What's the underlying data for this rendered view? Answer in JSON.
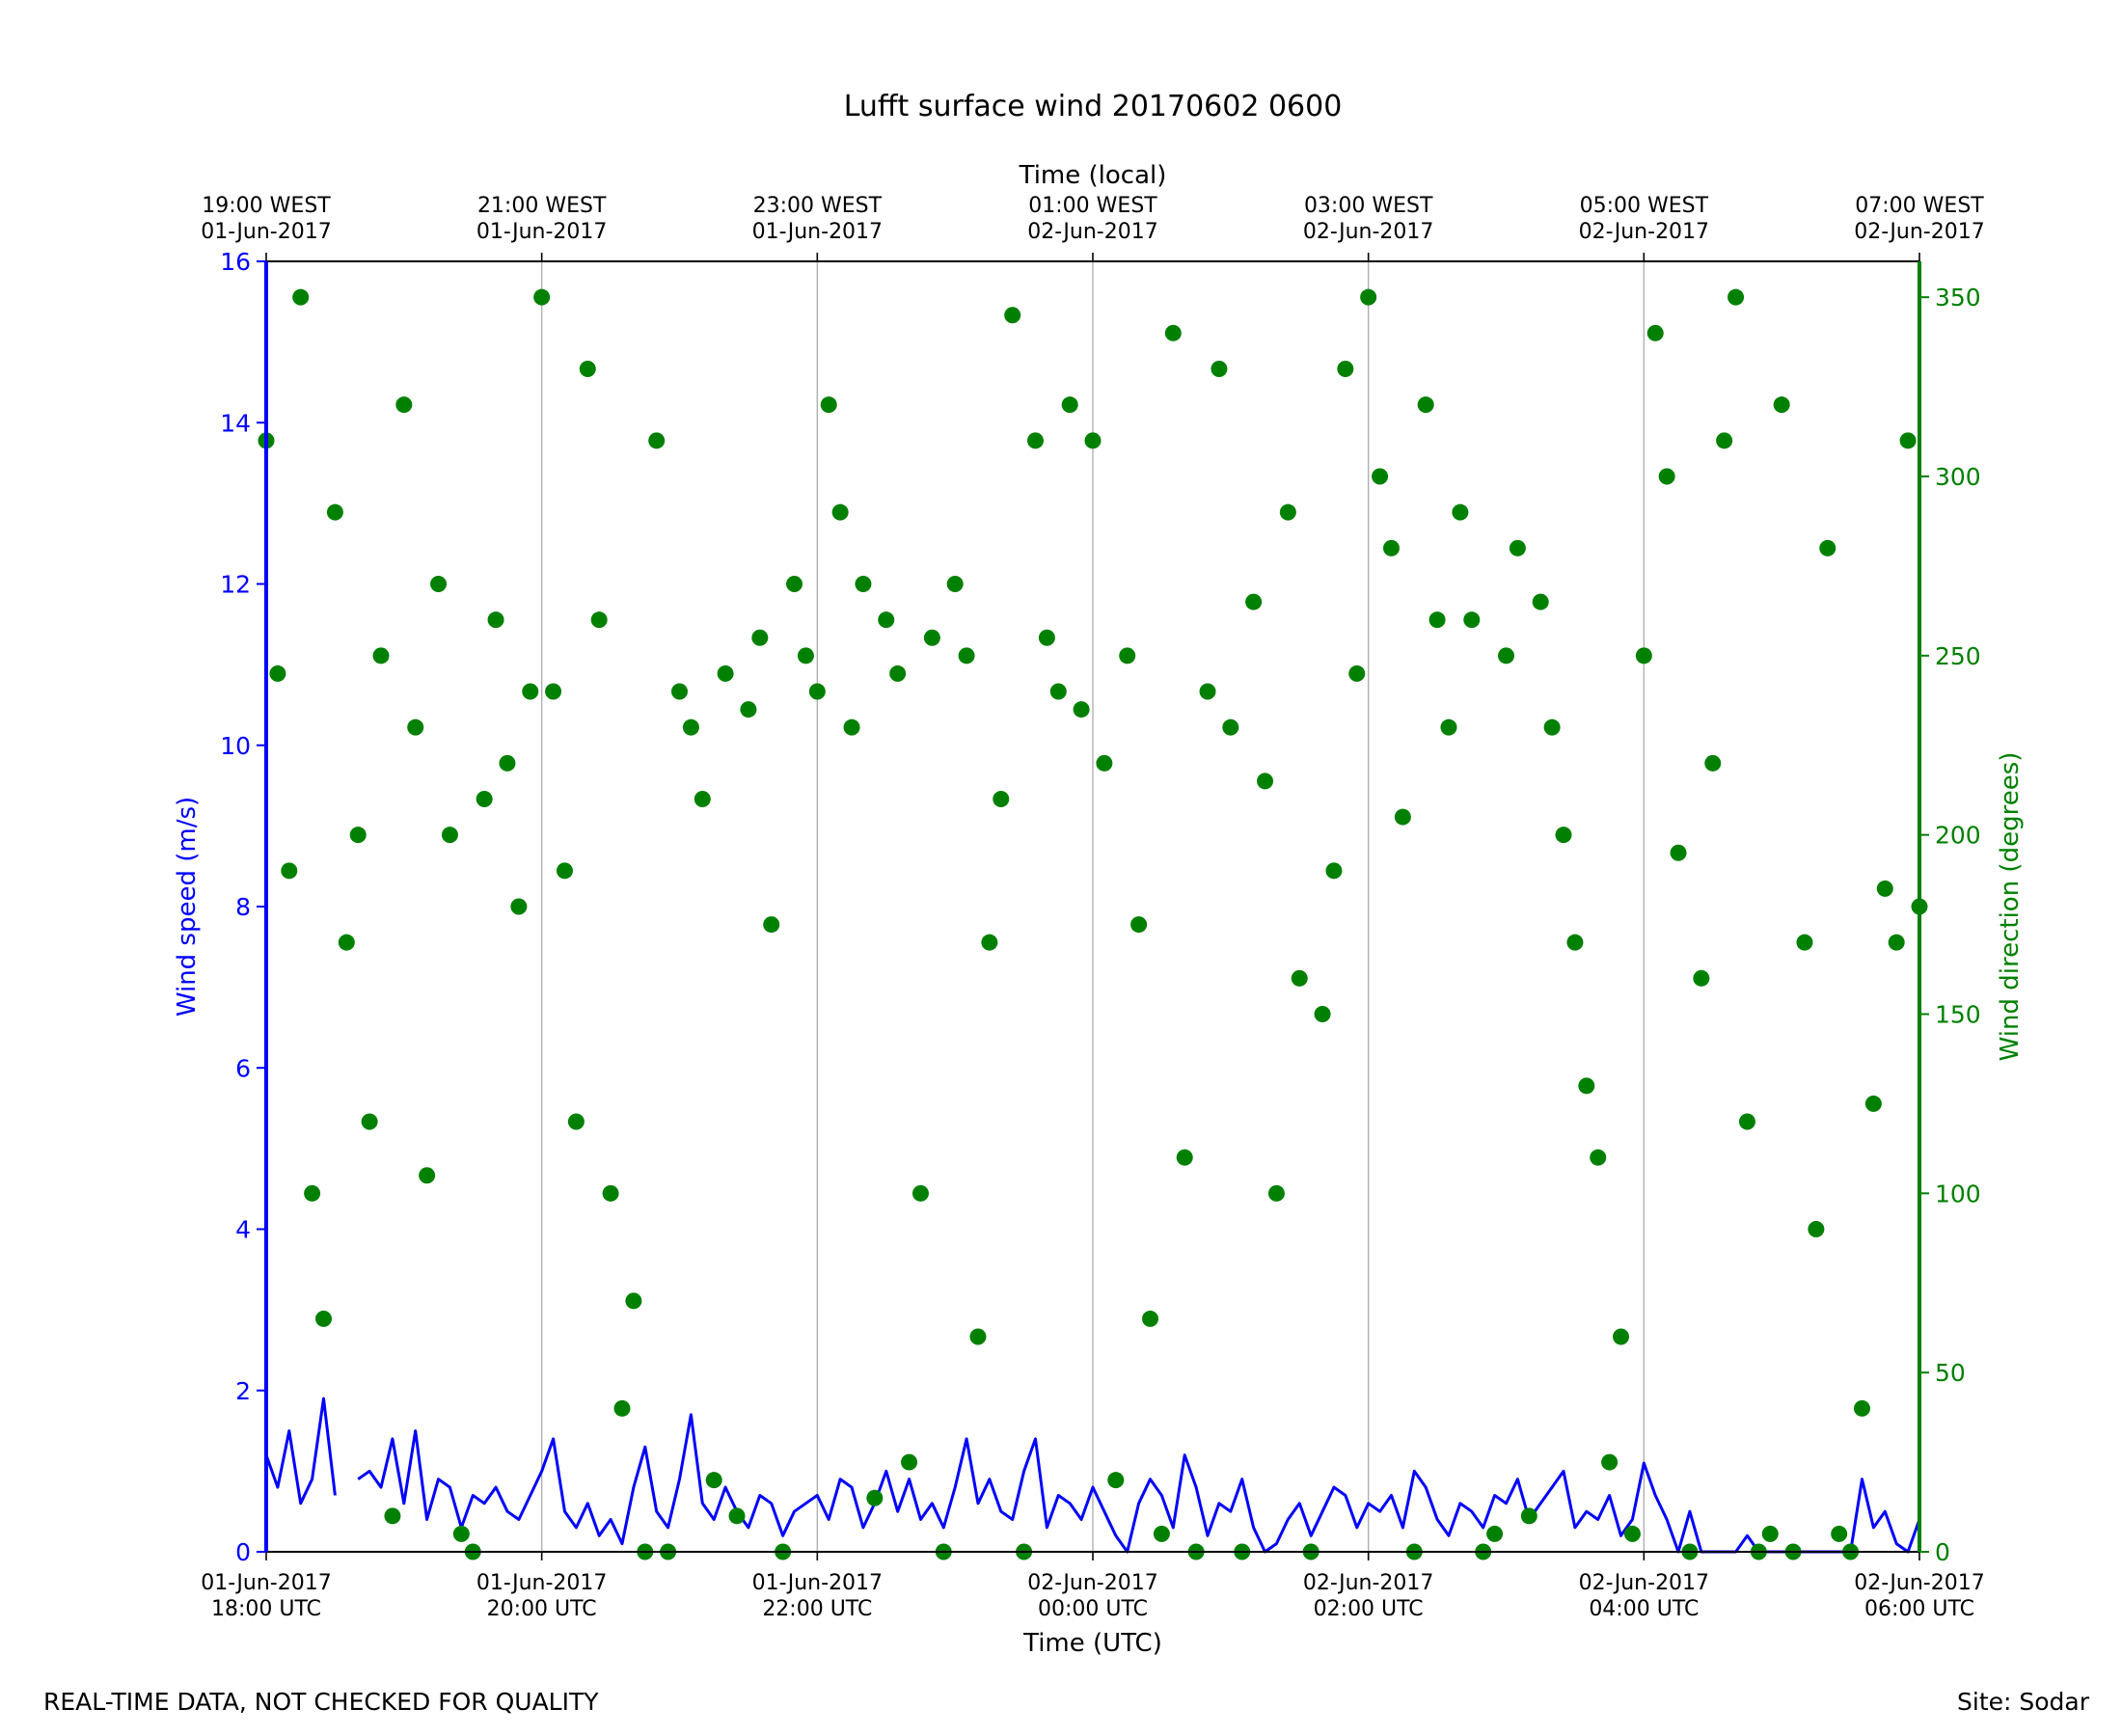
{
  "chart_data": {
    "type": "line",
    "title": "Lufft surface wind 20170602 0600",
    "xlabel": "Time (UTC)",
    "x2label": "Time (local)",
    "ylabel": "Wind speed (m/s)",
    "y2label": "Wind direction (degrees)",
    "xlim": [
      "2017-06-01T18:00",
      "2017-06-02T06:00"
    ],
    "xticks": [
      {
        "value": "2017-06-01T18:00",
        "label": "01-Jun-2017\n18:00 UTC"
      },
      {
        "value": "2017-06-01T20:00",
        "label": "01-Jun-2017\n20:00 UTC"
      },
      {
        "value": "2017-06-01T22:00",
        "label": "01-Jun-2017\n22:00 UTC"
      },
      {
        "value": "2017-06-02T00:00",
        "label": "02-Jun-2017\n00:00 UTC"
      },
      {
        "value": "2017-06-02T02:00",
        "label": "02-Jun-2017\n02:00 UTC"
      },
      {
        "value": "2017-06-02T04:00",
        "label": "02-Jun-2017\n04:00 UTC"
      },
      {
        "value": "2017-06-02T06:00",
        "label": "02-Jun-2017\n06:00 UTC"
      }
    ],
    "x2ticks": [
      {
        "value": "2017-06-01T18:00",
        "label": "19:00 WEST\n01-Jun-2017"
      },
      {
        "value": "2017-06-01T20:00",
        "label": "21:00 WEST\n01-Jun-2017"
      },
      {
        "value": "2017-06-01T22:00",
        "label": "23:00 WEST\n01-Jun-2017"
      },
      {
        "value": "2017-06-02T00:00",
        "label": "01:00 WEST\n02-Jun-2017"
      },
      {
        "value": "2017-06-02T02:00",
        "label": "03:00 WEST\n02-Jun-2017"
      },
      {
        "value": "2017-06-02T04:00",
        "label": "05:00 WEST\n02-Jun-2017"
      },
      {
        "value": "2017-06-02T06:00",
        "label": "07:00 WEST\n02-Jun-2017"
      }
    ],
    "ylim": [
      0,
      16
    ],
    "yticks": [
      0,
      2,
      4,
      6,
      8,
      10,
      12,
      14,
      16
    ],
    "ycolor": "#0000ff",
    "y2lim": [
      0,
      360
    ],
    "y2ticks": [
      0,
      50,
      100,
      150,
      200,
      250,
      300,
      350
    ],
    "y2color": "#008000",
    "grid": "x",
    "x": [
      "2017-06-01T18:00",
      "2017-06-01T18:05",
      "2017-06-01T18:10",
      "2017-06-01T18:15",
      "2017-06-01T18:20",
      "2017-06-01T18:25",
      "2017-06-01T18:30",
      "2017-06-01T18:35",
      "2017-06-01T18:40",
      "2017-06-01T18:45",
      "2017-06-01T18:50",
      "2017-06-01T18:55",
      "2017-06-01T19:00",
      "2017-06-01T19:05",
      "2017-06-01T19:10",
      "2017-06-01T19:15",
      "2017-06-01T19:20",
      "2017-06-01T19:25",
      "2017-06-01T19:30",
      "2017-06-01T19:35",
      "2017-06-01T19:40",
      "2017-06-01T19:45",
      "2017-06-01T19:50",
      "2017-06-01T19:55",
      "2017-06-01T20:00",
      "2017-06-01T20:05",
      "2017-06-01T20:10",
      "2017-06-01T20:15",
      "2017-06-01T20:20",
      "2017-06-01T20:25",
      "2017-06-01T20:30",
      "2017-06-01T20:35",
      "2017-06-01T20:40",
      "2017-06-01T20:45",
      "2017-06-01T20:50",
      "2017-06-01T20:55",
      "2017-06-01T21:00",
      "2017-06-01T21:05",
      "2017-06-01T21:10",
      "2017-06-01T21:15",
      "2017-06-01T21:20",
      "2017-06-01T21:25",
      "2017-06-01T21:30",
      "2017-06-01T21:35",
      "2017-06-01T21:40",
      "2017-06-01T21:45",
      "2017-06-01T21:50",
      "2017-06-01T21:55",
      "2017-06-01T22:00",
      "2017-06-01T22:05",
      "2017-06-01T22:10",
      "2017-06-01T22:15",
      "2017-06-01T22:20",
      "2017-06-01T22:25",
      "2017-06-01T22:30",
      "2017-06-01T22:35",
      "2017-06-01T22:40",
      "2017-06-01T22:45",
      "2017-06-01T22:50",
      "2017-06-01T22:55",
      "2017-06-01T23:00",
      "2017-06-01T23:05",
      "2017-06-01T23:10",
      "2017-06-01T23:15",
      "2017-06-01T23:20",
      "2017-06-01T23:25",
      "2017-06-01T23:30",
      "2017-06-01T23:35",
      "2017-06-01T23:40",
      "2017-06-01T23:45",
      "2017-06-01T23:50",
      "2017-06-01T23:55",
      "2017-06-02T00:00",
      "2017-06-02T00:05",
      "2017-06-02T00:10",
      "2017-06-02T00:15",
      "2017-06-02T00:20",
      "2017-06-02T00:25",
      "2017-06-02T00:30",
      "2017-06-02T00:35",
      "2017-06-02T00:40",
      "2017-06-02T00:45",
      "2017-06-02T00:50",
      "2017-06-02T00:55",
      "2017-06-02T01:00",
      "2017-06-02T01:05",
      "2017-06-02T01:10",
      "2017-06-02T01:15",
      "2017-06-02T01:20",
      "2017-06-02T01:25",
      "2017-06-02T01:30",
      "2017-06-02T01:35",
      "2017-06-02T01:40",
      "2017-06-02T01:45",
      "2017-06-02T01:50",
      "2017-06-02T01:55",
      "2017-06-02T02:00",
      "2017-06-02T02:05",
      "2017-06-02T02:10",
      "2017-06-02T02:15",
      "2017-06-02T02:20",
      "2017-06-02T02:25",
      "2017-06-02T02:30",
      "2017-06-02T02:35",
      "2017-06-02T02:40",
      "2017-06-02T02:45",
      "2017-06-02T02:50",
      "2017-06-02T02:55",
      "2017-06-02T03:00",
      "2017-06-02T03:05",
      "2017-06-02T03:10",
      "2017-06-02T03:15",
      "2017-06-02T03:20",
      "2017-06-02T03:25",
      "2017-06-02T03:30",
      "2017-06-02T03:35",
      "2017-06-02T03:40",
      "2017-06-02T03:45",
      "2017-06-02T03:50",
      "2017-06-02T03:55",
      "2017-06-02T04:00",
      "2017-06-02T04:05",
      "2017-06-02T04:10",
      "2017-06-02T04:15",
      "2017-06-02T04:20",
      "2017-06-02T04:25",
      "2017-06-02T04:30",
      "2017-06-02T04:35",
      "2017-06-02T04:40",
      "2017-06-02T04:45",
      "2017-06-02T04:50",
      "2017-06-02T04:55",
      "2017-06-02T05:00",
      "2017-06-02T05:05",
      "2017-06-02T05:10",
      "2017-06-02T05:15",
      "2017-06-02T05:20",
      "2017-06-02T05:25",
      "2017-06-02T05:30",
      "2017-06-02T05:35",
      "2017-06-02T05:40",
      "2017-06-02T05:45",
      "2017-06-02T05:50",
      "2017-06-02T05:55",
      "2017-06-02T06:00"
    ],
    "series": [
      {
        "type": "line",
        "axis": "y",
        "color": "#0000ff",
        "values": [
          1.2,
          0.8,
          1.5,
          0.6,
          0.9,
          1.9,
          0.7,
          null,
          0.9,
          1.0,
          0.8,
          1.4,
          0.6,
          1.5,
          0.4,
          0.9,
          0.8,
          0.3,
          0.7,
          0.6,
          0.8,
          0.5,
          0.4,
          0.7,
          1.0,
          1.4,
          0.5,
          0.3,
          0.6,
          0.2,
          0.4,
          0.1,
          0.8,
          1.3,
          0.5,
          0.3,
          0.9,
          1.7,
          0.6,
          0.4,
          0.8,
          0.5,
          0.3,
          0.7,
          0.6,
          0.2,
          0.5,
          0.6,
          0.7,
          0.4,
          0.9,
          0.8,
          0.3,
          0.6,
          1.0,
          0.5,
          0.9,
          0.4,
          0.6,
          0.3,
          0.8,
          1.4,
          0.6,
          0.9,
          0.5,
          0.4,
          1.0,
          1.4,
          0.3,
          0.7,
          0.6,
          0.4,
          0.8,
          0.5,
          0.2,
          0.0,
          0.6,
          0.9,
          0.7,
          0.3,
          1.2,
          0.8,
          0.2,
          0.6,
          0.5,
          0.9,
          0.3,
          0.0,
          0.1,
          0.4,
          0.6,
          0.2,
          0.5,
          0.8,
          0.7,
          0.3,
          0.6,
          0.5,
          0.7,
          0.3,
          1.0,
          0.8,
          0.4,
          0.2,
          0.6,
          0.5,
          0.3,
          0.7,
          0.6,
          0.9,
          0.4,
          0.6,
          0.8,
          1.0,
          0.3,
          0.5,
          0.4,
          0.7,
          0.2,
          0.4,
          1.1,
          0.7,
          0.4,
          0.0,
          0.5,
          0.0,
          0.0,
          0.0,
          0.0,
          0.2,
          0.0,
          0.0,
          0.0,
          0.0,
          0.0,
          0.0,
          0.0,
          0.0,
          0.0,
          0.9,
          0.3,
          0.5,
          0.1,
          0.0,
          0.4
        ]
      },
      {
        "type": "scatter",
        "axis": "y2",
        "color": "#008000",
        "values": [
          310,
          245,
          190,
          350,
          100,
          65,
          290,
          170,
          200,
          120,
          250,
          10,
          320,
          230,
          105,
          270,
          200,
          5,
          0,
          210,
          260,
          220,
          180,
          240,
          350,
          240,
          190,
          120,
          330,
          260,
          100,
          40,
          70,
          0,
          310,
          0,
          240,
          230,
          210,
          20,
          245,
          10,
          235,
          255,
          175,
          0,
          270,
          250,
          240,
          320,
          290,
          230,
          270,
          15,
          260,
          245,
          25,
          100,
          255,
          0,
          270,
          250,
          60,
          170,
          210,
          345,
          0,
          310,
          255,
          240,
          320,
          235,
          310,
          220,
          20,
          250,
          175,
          65,
          5,
          340,
          110,
          0,
          240,
          330,
          230,
          0,
          265,
          215,
          100,
          290,
          160,
          0,
          150,
          190,
          330,
          245,
          350,
          300,
          280,
          205,
          0,
          320,
          260,
          230,
          290,
          260,
          0,
          5,
          250,
          280,
          10,
          265,
          230,
          200,
          170,
          130,
          110,
          25,
          60,
          5,
          250,
          340,
          300,
          195,
          0,
          160,
          220,
          310,
          350,
          120,
          0,
          5,
          320,
          0,
          170,
          90,
          280,
          5,
          0,
          40,
          125,
          185,
          170,
          310,
          180
        ]
      }
    ]
  },
  "footer": {
    "left": "REAL-TIME DATA, NOT CHECKED FOR QUALITY",
    "right": "Site: Sodar"
  }
}
